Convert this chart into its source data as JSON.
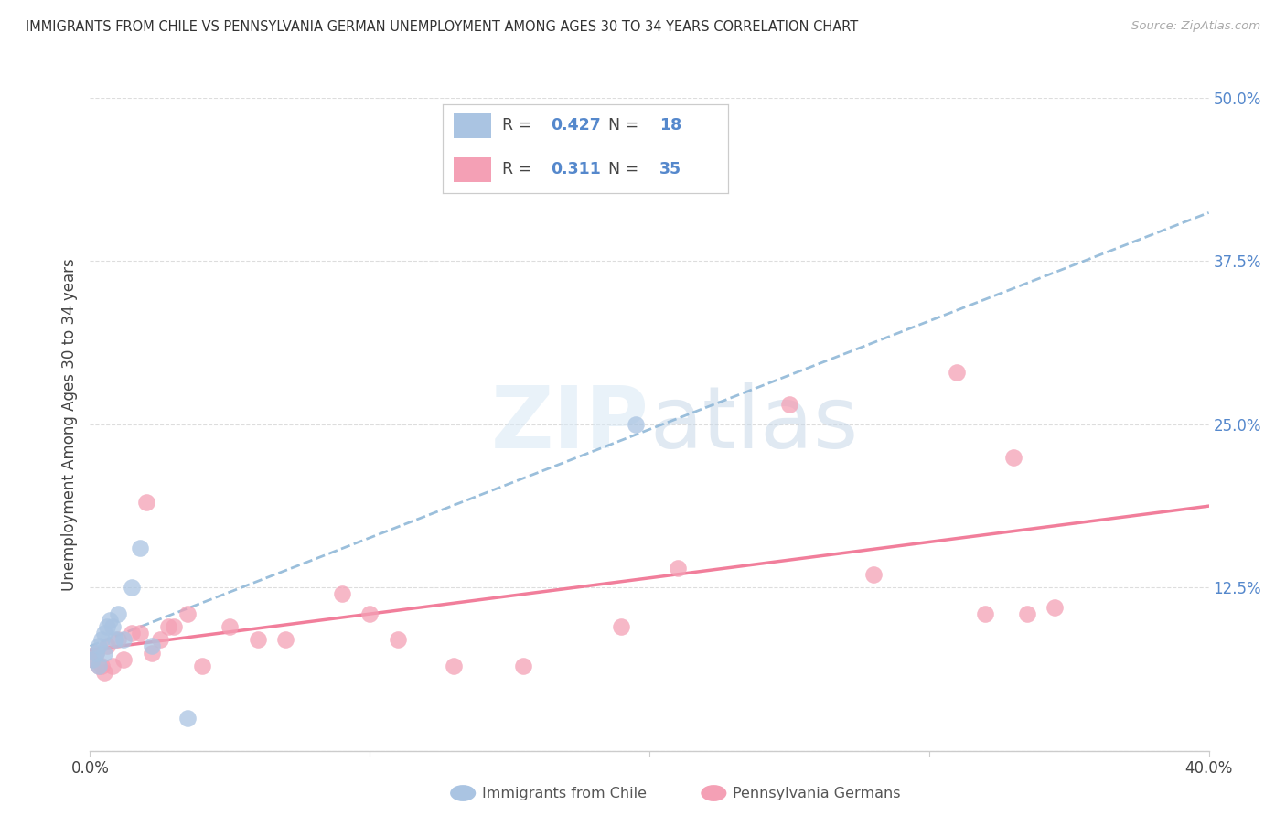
{
  "title": "IMMIGRANTS FROM CHILE VS PENNSYLVANIA GERMAN UNEMPLOYMENT AMONG AGES 30 TO 34 YEARS CORRELATION CHART",
  "source": "Source: ZipAtlas.com",
  "ylabel": "Unemployment Among Ages 30 to 34 years",
  "xlim": [
    0.0,
    0.4
  ],
  "ylim": [
    0.0,
    0.5
  ],
  "xticks": [
    0.0,
    0.1,
    0.2,
    0.3,
    0.4
  ],
  "xticklabels": [
    "0.0%",
    "",
    "",
    "",
    "40.0%"
  ],
  "yticks": [
    0.0,
    0.125,
    0.25,
    0.375,
    0.5
  ],
  "yticklabels": [
    "",
    "12.5%",
    "25.0%",
    "37.5%",
    "50.0%"
  ],
  "chile_R": 0.427,
  "chile_N": 18,
  "penn_R": 0.311,
  "penn_N": 35,
  "chile_color": "#aac4e2",
  "penn_color": "#f4a0b5",
  "chile_line_color": "#90b8d8",
  "penn_line_color": "#f07090",
  "watermark_zip": "ZIP",
  "watermark_atlas": "atlas",
  "chile_x": [
    0.001,
    0.002,
    0.003,
    0.003,
    0.004,
    0.005,
    0.005,
    0.006,
    0.007,
    0.008,
    0.009,
    0.01,
    0.012,
    0.015,
    0.018,
    0.022,
    0.195,
    0.035
  ],
  "chile_y": [
    0.07,
    0.075,
    0.08,
    0.065,
    0.085,
    0.09,
    0.075,
    0.095,
    0.1,
    0.095,
    0.085,
    0.105,
    0.085,
    0.125,
    0.155,
    0.08,
    0.25,
    0.025
  ],
  "penn_x": [
    0.001,
    0.002,
    0.003,
    0.004,
    0.005,
    0.006,
    0.008,
    0.01,
    0.012,
    0.015,
    0.018,
    0.02,
    0.022,
    0.025,
    0.028,
    0.03,
    0.035,
    0.04,
    0.05,
    0.06,
    0.07,
    0.09,
    0.1,
    0.11,
    0.13,
    0.155,
    0.19,
    0.21,
    0.25,
    0.28,
    0.31,
    0.32,
    0.33,
    0.335,
    0.345
  ],
  "penn_y": [
    0.07,
    0.075,
    0.065,
    0.065,
    0.06,
    0.08,
    0.065,
    0.085,
    0.07,
    0.09,
    0.09,
    0.19,
    0.075,
    0.085,
    0.095,
    0.095,
    0.105,
    0.065,
    0.095,
    0.085,
    0.085,
    0.12,
    0.105,
    0.085,
    0.065,
    0.065,
    0.095,
    0.14,
    0.265,
    0.135,
    0.29,
    0.105,
    0.225,
    0.105,
    0.11
  ]
}
